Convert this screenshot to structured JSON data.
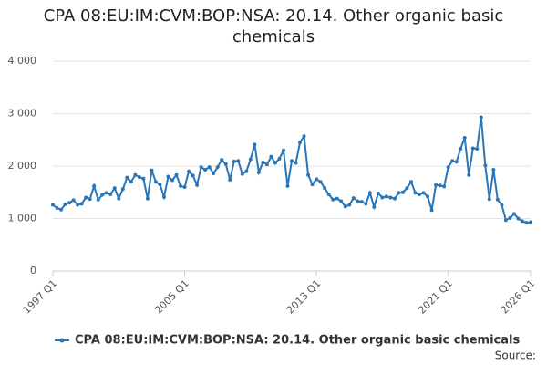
{
  "chart_data": {
    "type": "line",
    "title": "CPA 08:EU:IM:CVM:BOP:NSA: 20.14. Other organic basic chemicals",
    "source": "Source:",
    "categories": [
      "1997 Q1",
      null,
      null,
      null,
      null,
      null,
      null,
      null,
      null,
      null,
      null,
      null,
      null,
      null,
      null,
      null,
      null,
      null,
      null,
      null,
      null,
      null,
      null,
      null,
      null,
      null,
      null,
      null,
      null,
      null,
      null,
      null,
      "2005 Q1",
      null,
      null,
      null,
      null,
      null,
      null,
      null,
      null,
      null,
      null,
      null,
      null,
      null,
      null,
      null,
      null,
      null,
      null,
      null,
      null,
      null,
      null,
      null,
      null,
      null,
      null,
      null,
      null,
      null,
      null,
      null,
      "2013 Q1",
      null,
      null,
      null,
      null,
      null,
      null,
      null,
      null,
      null,
      null,
      null,
      null,
      null,
      null,
      null,
      null,
      null,
      null,
      null,
      null,
      null,
      null,
      null,
      null,
      null,
      null,
      null,
      null,
      null,
      null,
      null,
      "2021 Q1",
      null,
      null,
      null,
      null,
      null,
      null,
      null,
      null,
      null,
      null,
      null,
      null,
      null,
      null,
      null,
      null,
      null,
      null,
      null,
      "2026 Q1"
    ],
    "series": [
      {
        "name": "CPA 08:EU:IM:CVM:BOP:NSA: 20.14. Other organic basic chemicals",
        "color": "#2a75b5",
        "values": [
          1260,
          1200,
          1170,
          1270,
          1300,
          1350,
          1260,
          1280,
          1400,
          1370,
          1620,
          1360,
          1450,
          1490,
          1460,
          1580,
          1380,
          1560,
          1780,
          1700,
          1830,
          1790,
          1760,
          1380,
          1920,
          1700,
          1650,
          1410,
          1800,
          1730,
          1830,
          1620,
          1600,
          1900,
          1820,
          1640,
          1980,
          1930,
          1980,
          1860,
          1980,
          2120,
          2040,
          1740,
          2090,
          2100,
          1850,
          1900,
          2130,
          2410,
          1880,
          2070,
          2030,
          2180,
          2060,
          2140,
          2300,
          1620,
          2100,
          2060,
          2450,
          2570,
          1830,
          1650,
          1750,
          1700,
          1580,
          1460,
          1360,
          1380,
          1330,
          1230,
          1260,
          1390,
          1330,
          1320,
          1280,
          1490,
          1220,
          1480,
          1400,
          1420,
          1400,
          1380,
          1490,
          1500,
          1580,
          1700,
          1490,
          1460,
          1490,
          1420,
          1160,
          1640,
          1630,
          1610,
          1980,
          2100,
          2080,
          2330,
          2540,
          1830,
          2340,
          2330,
          2930,
          2010,
          1370,
          1930,
          1360,
          1260,
          970,
          1010,
          1090,
          1000,
          950,
          920,
          930
        ]
      }
    ],
    "ylim": [
      0,
      4000
    ],
    "yticks": [
      0,
      {
        "value": 1000,
        "label": "1 000"
      },
      {
        "value": 2000,
        "label": "2 000"
      },
      {
        "value": 3000,
        "label": "3 000"
      },
      {
        "value": 4000,
        "label": "4 000"
      }
    ],
    "grid": true
  }
}
